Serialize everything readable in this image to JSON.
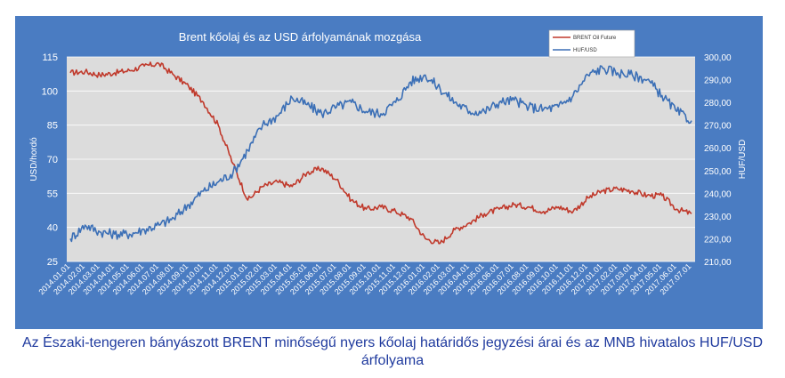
{
  "chart_data": {
    "type": "line",
    "title": "Brent kőolaj és az USD árfolyamának mozgása",
    "ylabel": "USD/hordó",
    "y2label": "HUF/USD",
    "ylim": [
      25,
      115
    ],
    "y2lim": [
      210,
      300
    ],
    "yticks": [
      "25",
      "40",
      "55",
      "70",
      "85",
      "100",
      "115"
    ],
    "y2ticks": [
      "210,00",
      "220,00",
      "230,00",
      "240,00",
      "250,00",
      "260,00",
      "270,00",
      "280,00",
      "290,00",
      "300,00"
    ],
    "x_categories": [
      "2014.01.01",
      "2014.02.01",
      "2014.03.01",
      "2014.04.01",
      "2014.05.01",
      "2014.06.01",
      "2014.07.01",
      "2014.08.01",
      "2014.09.01",
      "2014.10.01",
      "2014.11.01",
      "2014.12.01",
      "2015.01.01",
      "2015.02.01",
      "2015.03.01",
      "2015.04.01",
      "2015.05.01",
      "2015.06.01",
      "2015.07.01",
      "2015.08.01",
      "2015.09.01",
      "2015.10.01",
      "2015.11.01",
      "2015.12.01",
      "2016.01.01",
      "2016.02.01",
      "2016.03.01",
      "2016.04.01",
      "2016.05.01",
      "2016.06.01",
      "2016.07.01",
      "2016.08.01",
      "2016.09.01",
      "2016.10.01",
      "2016.11.01",
      "2016.12.01",
      "2017.01.01",
      "2017.02.01",
      "2017.03.01",
      "2017.04.01",
      "2017.05.01",
      "2017.06.01",
      "2017.07.01"
    ],
    "legend_position": "top-right",
    "grid": true,
    "series": [
      {
        "name": "BRENT Oil Future",
        "axis": "left",
        "color": "#c0392b",
        "values": [
          108,
          108.5,
          107,
          108,
          109,
          111,
          112,
          107,
          102,
          95,
          85,
          68,
          52,
          58,
          60,
          58,
          64,
          66,
          61,
          52,
          48,
          49,
          47,
          44,
          35,
          33,
          39,
          42,
          46,
          48,
          50,
          49,
          47,
          49,
          47,
          53,
          56,
          57,
          56,
          54,
          54,
          48,
          46
        ]
      },
      {
        "name": "HUF/USD",
        "axis": "right",
        "color": "#3b6fb6",
        "values": [
          220,
          226,
          223,
          222,
          222,
          224,
          226,
          229,
          235,
          241,
          245,
          249,
          259,
          270,
          274,
          282,
          279,
          275,
          278,
          280,
          276,
          275,
          280,
          289,
          292,
          286,
          280,
          276,
          276,
          280,
          281,
          278,
          277,
          278,
          283,
          292,
          295,
          293,
          292,
          290,
          283,
          276,
          272
        ]
      }
    ]
  },
  "caption": {
    "line1": "Az Északi-tengeren bányászott BRENT minőségű nyers kőolaj határidős jegyzési árai és az MNB hivatalos HUF/USD",
    "line2": "árfolyama"
  }
}
